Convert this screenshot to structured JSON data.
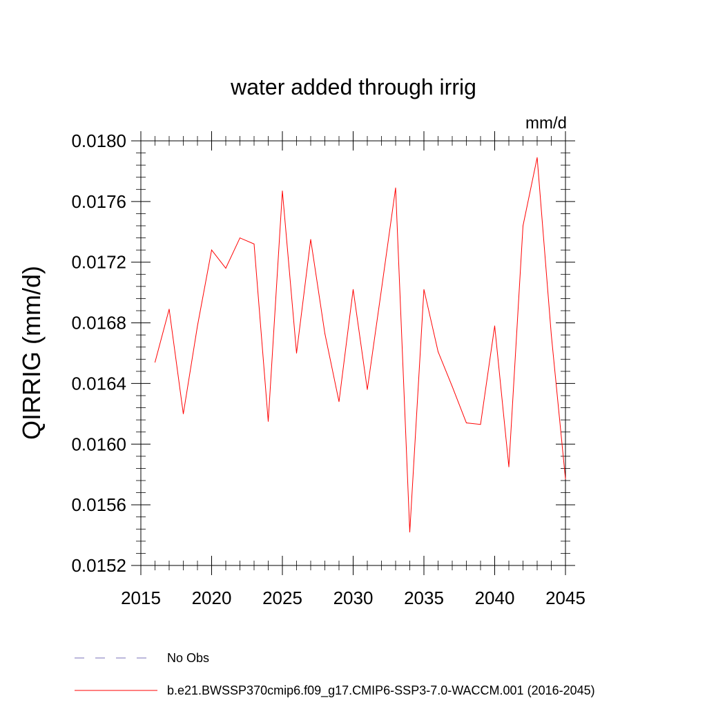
{
  "chart_data": {
    "type": "line",
    "title": "water added through irrig",
    "units": "mm/d",
    "ylabel": "QIRRIG  (mm/d)",
    "xlabel": "",
    "xlim": [
      2015,
      2045
    ],
    "ylim": [
      0.0152,
      0.018
    ],
    "x_ticks": [
      2015,
      2020,
      2025,
      2030,
      2035,
      2040,
      2045
    ],
    "y_ticks": [
      "0.0152",
      "0.0156",
      "0.0160",
      "0.0164",
      "0.0168",
      "0.0172",
      "0.0176",
      "0.0180"
    ],
    "grid": false,
    "legend_position": "bottom",
    "series": [
      {
        "name": "b.e21.BWSSP370cmip6.f09_g17.CMIP6-SSP3-7.0-WACCM.001 (2016-2045)",
        "color": "#ff0000",
        "x": [
          2016,
          2017,
          2018,
          2019,
          2020,
          2021,
          2022,
          2023,
          2024,
          2025,
          2026,
          2027,
          2028,
          2029,
          2030,
          2031,
          2032,
          2033,
          2034,
          2035,
          2036,
          2037,
          2038,
          2039,
          2040,
          2041,
          2042,
          2043,
          2044,
          2045
        ],
        "y": [
          0.01654,
          0.01689,
          0.0162,
          0.01678,
          0.01728,
          0.01716,
          0.01736,
          0.01732,
          0.01615,
          0.01767,
          0.0166,
          0.01735,
          0.01673,
          0.01628,
          0.01702,
          0.01636,
          0.01702,
          0.01769,
          0.01542,
          0.01702,
          0.01661,
          0.01638,
          0.01614,
          0.01613,
          0.01678,
          0.01585,
          0.01744,
          0.01789,
          0.01672,
          0.01577
        ]
      }
    ],
    "legend": [
      {
        "label": "No Obs",
        "color": "#7a70b8",
        "style": "dashed"
      },
      {
        "label": "b.e21.BWSSP370cmip6.f09_g17.CMIP6-SSP3-7.0-WACCM.001 (2016-2045)",
        "color": "#ff0000",
        "style": "solid"
      }
    ]
  }
}
